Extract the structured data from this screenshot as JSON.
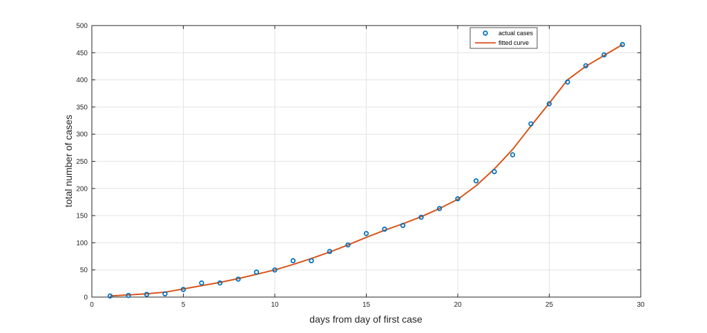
{
  "chart_data": {
    "type": "line",
    "title": "",
    "xlabel": "days from day of first case",
    "ylabel": "total number of cases",
    "xlim": [
      0,
      30
    ],
    "ylim": [
      0,
      500
    ],
    "xticks": [
      0,
      5,
      10,
      15,
      20,
      25,
      30
    ],
    "yticks": [
      0,
      50,
      100,
      150,
      200,
      250,
      300,
      350,
      400,
      450,
      500
    ],
    "grid": true,
    "legend_position": "top-right",
    "colors": {
      "actual": "#0072bd",
      "fitted": "#d95319"
    },
    "series": [
      {
        "name": "actual cases",
        "marker": "circle",
        "x": [
          1,
          2,
          3,
          4,
          5,
          6,
          7,
          8,
          9,
          10,
          11,
          12,
          13,
          14,
          15,
          16,
          17,
          18,
          19,
          20,
          21,
          22,
          23,
          24,
          25,
          26,
          27,
          28,
          29
        ],
        "y": [
          2,
          3,
          5,
          6,
          14,
          26,
          26,
          33,
          46,
          50,
          67,
          67,
          84,
          96,
          117,
          125,
          132,
          147,
          163,
          181,
          214,
          231,
          262,
          319,
          356,
          396,
          426,
          446,
          465
        ]
      },
      {
        "name": "fitted curve",
        "marker": "none",
        "x": [
          1,
          2,
          3,
          4,
          5,
          6,
          7,
          8,
          9,
          10,
          11,
          12,
          13,
          14,
          15,
          16,
          17,
          18,
          19,
          20,
          21,
          22,
          23,
          24,
          25,
          26,
          27,
          28,
          29
        ],
        "y": [
          2,
          4,
          6,
          9,
          15,
          21,
          27,
          34,
          42,
          50,
          60,
          71,
          83,
          96,
          110,
          123,
          135,
          148,
          163,
          180,
          205,
          236,
          272,
          315,
          357,
          400,
          425,
          445,
          465
        ]
      }
    ]
  }
}
